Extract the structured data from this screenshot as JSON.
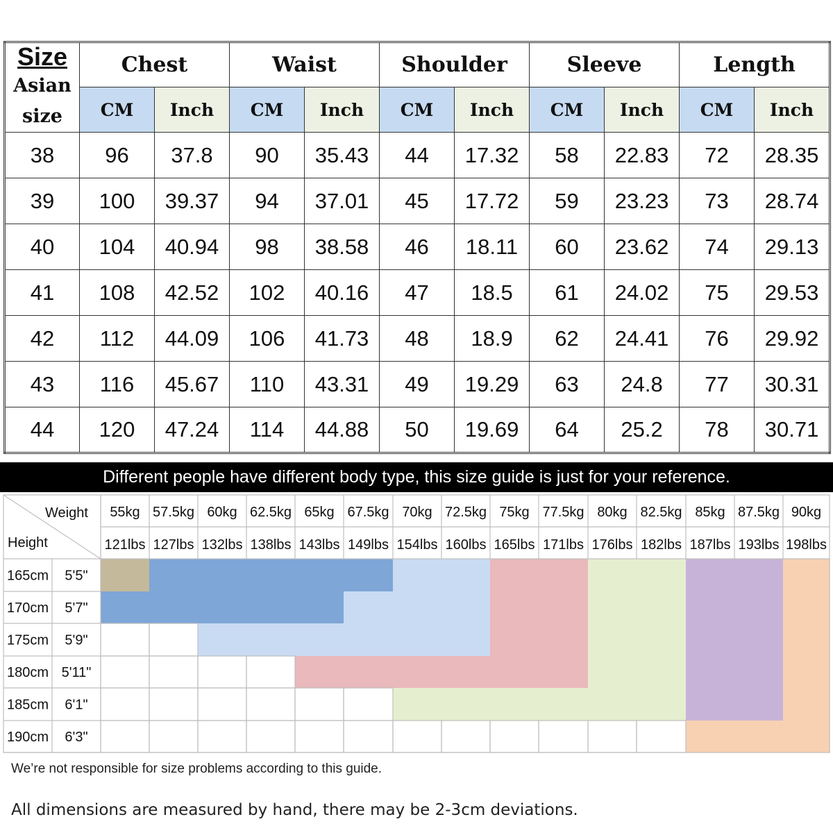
{
  "size_table": {
    "corner": {
      "title": "Size",
      "subtitle_line1": "Asian",
      "subtitle_line2": "size"
    },
    "measurements": [
      "Chest",
      "Waist",
      "Shoulder",
      "Sleeve",
      "Length"
    ],
    "units": {
      "cm": "CM",
      "inch": "Inch"
    },
    "rows": [
      {
        "size": "38",
        "values": [
          "96",
          "37.8",
          "90",
          "35.43",
          "44",
          "17.32",
          "58",
          "22.83",
          "72",
          "28.35"
        ]
      },
      {
        "size": "39",
        "values": [
          "100",
          "39.37",
          "94",
          "37.01",
          "45",
          "17.72",
          "59",
          "23.23",
          "73",
          "28.74"
        ]
      },
      {
        "size": "40",
        "values": [
          "104",
          "40.94",
          "98",
          "38.58",
          "46",
          "18.11",
          "60",
          "23.62",
          "74",
          "29.13"
        ]
      },
      {
        "size": "41",
        "values": [
          "108",
          "42.52",
          "102",
          "40.16",
          "47",
          "18.5",
          "61",
          "24.02",
          "75",
          "29.53"
        ]
      },
      {
        "size": "42",
        "values": [
          "112",
          "44.09",
          "106",
          "41.73",
          "48",
          "18.9",
          "62",
          "24.41",
          "76",
          "29.92"
        ]
      },
      {
        "size": "43",
        "values": [
          "116",
          "45.67",
          "110",
          "43.31",
          "49",
          "19.29",
          "63",
          "24.8",
          "77",
          "30.31"
        ]
      },
      {
        "size": "44",
        "values": [
          "120",
          "47.24",
          "114",
          "44.88",
          "50",
          "19.69",
          "64",
          "25.2",
          "78",
          "30.71"
        ]
      }
    ]
  },
  "banner": "Different people have different body type, this size guide is just for your reference.",
  "fit_chart": {
    "weight_label": "Weight",
    "height_label": "Height",
    "weights_kg": [
      "55kg",
      "57.5kg",
      "60kg",
      "62.5kg",
      "65kg",
      "67.5kg",
      "70kg",
      "72.5kg",
      "75kg",
      "77.5kg",
      "80kg",
      "82.5kg",
      "85kg",
      "87.5kg",
      "90kg"
    ],
    "weights_lbs": [
      "121lbs",
      "127lbs",
      "132lbs",
      "138lbs",
      "143lbs",
      "149lbs",
      "154lbs",
      "160lbs",
      "165lbs",
      "171lbs",
      "176lbs",
      "182lbs",
      "187lbs",
      "193lbs",
      "198lbs"
    ],
    "heights": [
      {
        "cm": "165cm",
        "ft": "5'5\""
      },
      {
        "cm": "170cm",
        "ft": "5'7\""
      },
      {
        "cm": "175cm",
        "ft": "5'9\""
      },
      {
        "cm": "180cm",
        "ft": "5'11\""
      },
      {
        "cm": "185cm",
        "ft": "6'1\""
      },
      {
        "cm": "190cm",
        "ft": "6'3\""
      }
    ],
    "zones": [
      {
        "size": "38",
        "color": "#c4b99a",
        "cells": [
          [
            0,
            0
          ]
        ]
      },
      {
        "size": "39",
        "color": "#7ea6d6",
        "cells": [
          [
            0,
            1
          ],
          [
            0,
            2
          ],
          [
            0,
            3
          ],
          [
            0,
            4
          ],
          [
            0,
            5
          ],
          [
            1,
            0
          ],
          [
            1,
            1
          ],
          [
            1,
            2
          ],
          [
            1,
            3
          ],
          [
            1,
            4
          ]
        ]
      },
      {
        "size": "40",
        "color": "#c8dbf3",
        "cells": [
          [
            0,
            6
          ],
          [
            0,
            7
          ],
          [
            1,
            5
          ],
          [
            1,
            6
          ],
          [
            1,
            7
          ],
          [
            2,
            2
          ],
          [
            2,
            3
          ],
          [
            2,
            4
          ],
          [
            2,
            5
          ],
          [
            2,
            6
          ],
          [
            2,
            7
          ]
        ]
      },
      {
        "size": "41",
        "color": "#e9b9bb",
        "cells": [
          [
            0,
            8
          ],
          [
            0,
            9
          ],
          [
            1,
            8
          ],
          [
            1,
            9
          ],
          [
            2,
            8
          ],
          [
            2,
            9
          ],
          [
            3,
            4
          ],
          [
            3,
            5
          ],
          [
            3,
            6
          ],
          [
            3,
            7
          ],
          [
            3,
            8
          ],
          [
            3,
            9
          ]
        ]
      },
      {
        "size": "42",
        "color": "#e5efd0",
        "cells": [
          [
            0,
            10
          ],
          [
            0,
            11
          ],
          [
            1,
            10
          ],
          [
            1,
            11
          ],
          [
            2,
            10
          ],
          [
            2,
            11
          ],
          [
            3,
            10
          ],
          [
            3,
            11
          ],
          [
            4,
            6
          ],
          [
            4,
            7
          ],
          [
            4,
            8
          ],
          [
            4,
            9
          ],
          [
            4,
            10
          ],
          [
            4,
            11
          ]
        ]
      },
      {
        "size": "43",
        "color": "#c8b3d8",
        "cells": [
          [
            0,
            12
          ],
          [
            0,
            13
          ],
          [
            1,
            12
          ],
          [
            1,
            13
          ],
          [
            2,
            12
          ],
          [
            2,
            13
          ],
          [
            3,
            12
          ],
          [
            3,
            13
          ],
          [
            4,
            12
          ],
          [
            4,
            13
          ]
        ]
      },
      {
        "size": "44",
        "color": "#f8d1b2",
        "cells": [
          [
            0,
            14
          ],
          [
            0,
            15
          ],
          [
            1,
            14
          ],
          [
            1,
            15
          ],
          [
            2,
            14
          ],
          [
            2,
            15
          ],
          [
            3,
            14
          ],
          [
            3,
            15
          ],
          [
            4,
            14
          ],
          [
            4,
            15
          ],
          [
            5,
            12
          ],
          [
            5,
            13
          ],
          [
            5,
            14
          ],
          [
            5,
            15
          ]
        ]
      }
    ]
  },
  "notes": {
    "note1": "We’re not responsible for size problems according to this guide.",
    "note2": "All dimensions are measured by hand, there may be 2-3cm deviations."
  }
}
